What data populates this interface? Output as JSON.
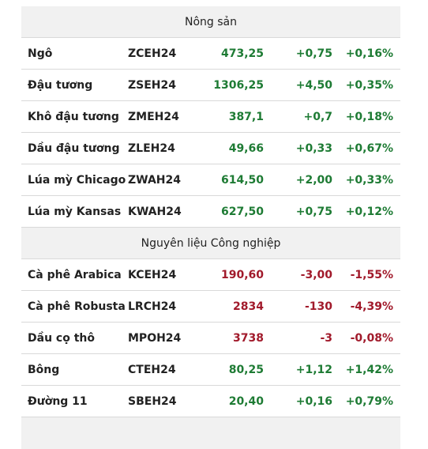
{
  "table": {
    "sections": [
      {
        "title": "Nông sản",
        "rows": [
          {
            "cells": [
              "Ngô",
              "ZCEH24",
              "473,25",
              "+0,75",
              "+0,16%"
            ],
            "color": "#1e7b34"
          },
          {
            "cells": [
              "Đậu tương",
              "ZSEH24",
              "1306,25",
              "+4,50",
              "+0,35%"
            ],
            "color": "#1e7b34"
          },
          {
            "cells": [
              "Khô đậu tương",
              "ZMEH24",
              "387,1",
              "+0,7",
              "+0,18%"
            ],
            "color": "#1e7b34"
          },
          {
            "cells": [
              "Dầu đậu tương",
              "ZLEH24",
              "49,66",
              "+0,33",
              "+0,67%"
            ],
            "color": "#1e7b34"
          },
          {
            "cells": [
              "Lúa mỳ Chicago",
              "ZWAH24",
              "614,50",
              "+2,00",
              "+0,33%"
            ],
            "color": "#1e7b34"
          },
          {
            "cells": [
              "Lúa mỳ Kansas",
              "KWAH24",
              "627,50",
              "+0,75",
              "+0,12%"
            ],
            "color": "#1e7b34"
          }
        ]
      },
      {
        "title": "Nguyên liệu Công nghiệp",
        "rows": [
          {
            "cells": [
              "Cà phê Arabica",
              "KCEH24",
              "190,60",
              "-3,00",
              "-1,55%"
            ],
            "color": "#a11a2b"
          },
          {
            "cells": [
              "Cà phê Robusta",
              "LRCH24",
              "2834",
              "-130",
              "-4,39%"
            ],
            "color": "#a11a2b"
          },
          {
            "cells": [
              "Dầu cọ thô",
              "MPOH24",
              "3738",
              "-3",
              "-0,08%"
            ],
            "color": "#a11a2b"
          },
          {
            "cells": [
              "Bông",
              "CTEH24",
              "80,25",
              "+1,12",
              "+1,42%"
            ],
            "color": "#1e7b34"
          },
          {
            "cells": [
              "Đường 11",
              "SBEH24",
              "20,40",
              "+0,16",
              "+0,79%"
            ],
            "color": "#1e7b34"
          }
        ]
      }
    ]
  }
}
